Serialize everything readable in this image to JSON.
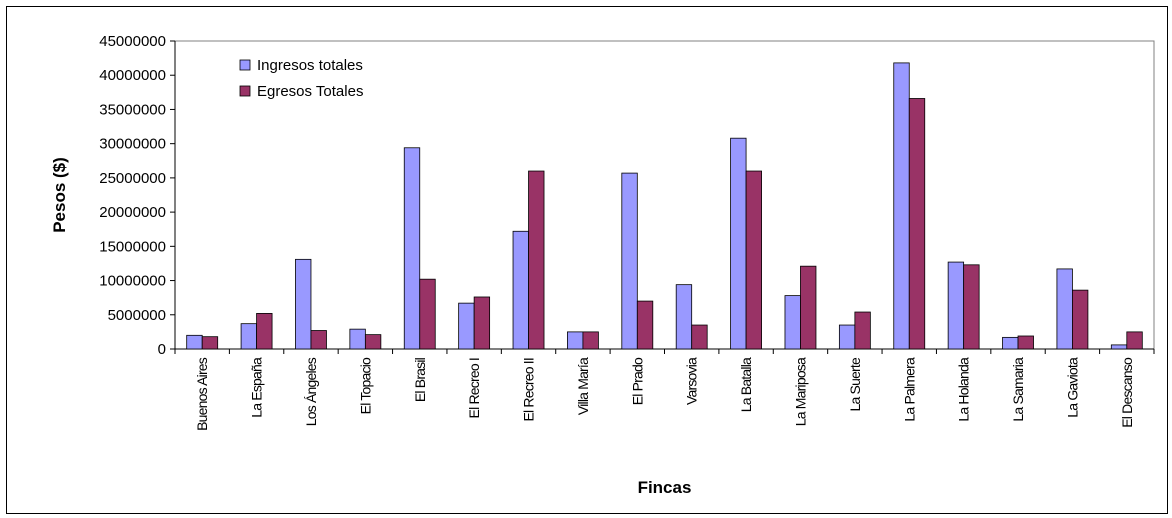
{
  "chart_data": {
    "type": "bar",
    "xlabel": "Fincas",
    "ylabel": "Pesos ($)",
    "ylim": [
      0,
      45000000
    ],
    "yticks": [
      "0",
      "5000000",
      "10000000",
      "15000000",
      "20000000",
      "25000000",
      "30000000",
      "35000000",
      "40000000",
      "45000000"
    ],
    "grid": false,
    "legend_position": "top-left",
    "categories": [
      "Buenos Aires",
      "La España",
      "Los Ángeles",
      "El Topacio",
      "El Brasil",
      "El Recreo I",
      "El Recreo II",
      "Villa María",
      "El Prado",
      "Varsovia",
      "La Batalla",
      "La Mariposa",
      "La Suerte",
      "La Palmera",
      "La Holanda",
      "La Samaria",
      "La Gaviota",
      "El Descanso"
    ],
    "series": [
      {
        "name": "Ingresos totales",
        "color": "#9999ff",
        "values": [
          2000000,
          3700000,
          13100000,
          2900000,
          29400000,
          6700000,
          17200000,
          2500000,
          25700000,
          9400000,
          30800000,
          7800000,
          3500000,
          41800000,
          12700000,
          1700000,
          11700000,
          600000
        ]
      },
      {
        "name": "Egresos Totales",
        "color": "#993366",
        "values": [
          1800000,
          5200000,
          2700000,
          2100000,
          10200000,
          7600000,
          26000000,
          2500000,
          7000000,
          3500000,
          26000000,
          12100000,
          5400000,
          36600000,
          12300000,
          1900000,
          8600000,
          2500000
        ]
      }
    ]
  }
}
